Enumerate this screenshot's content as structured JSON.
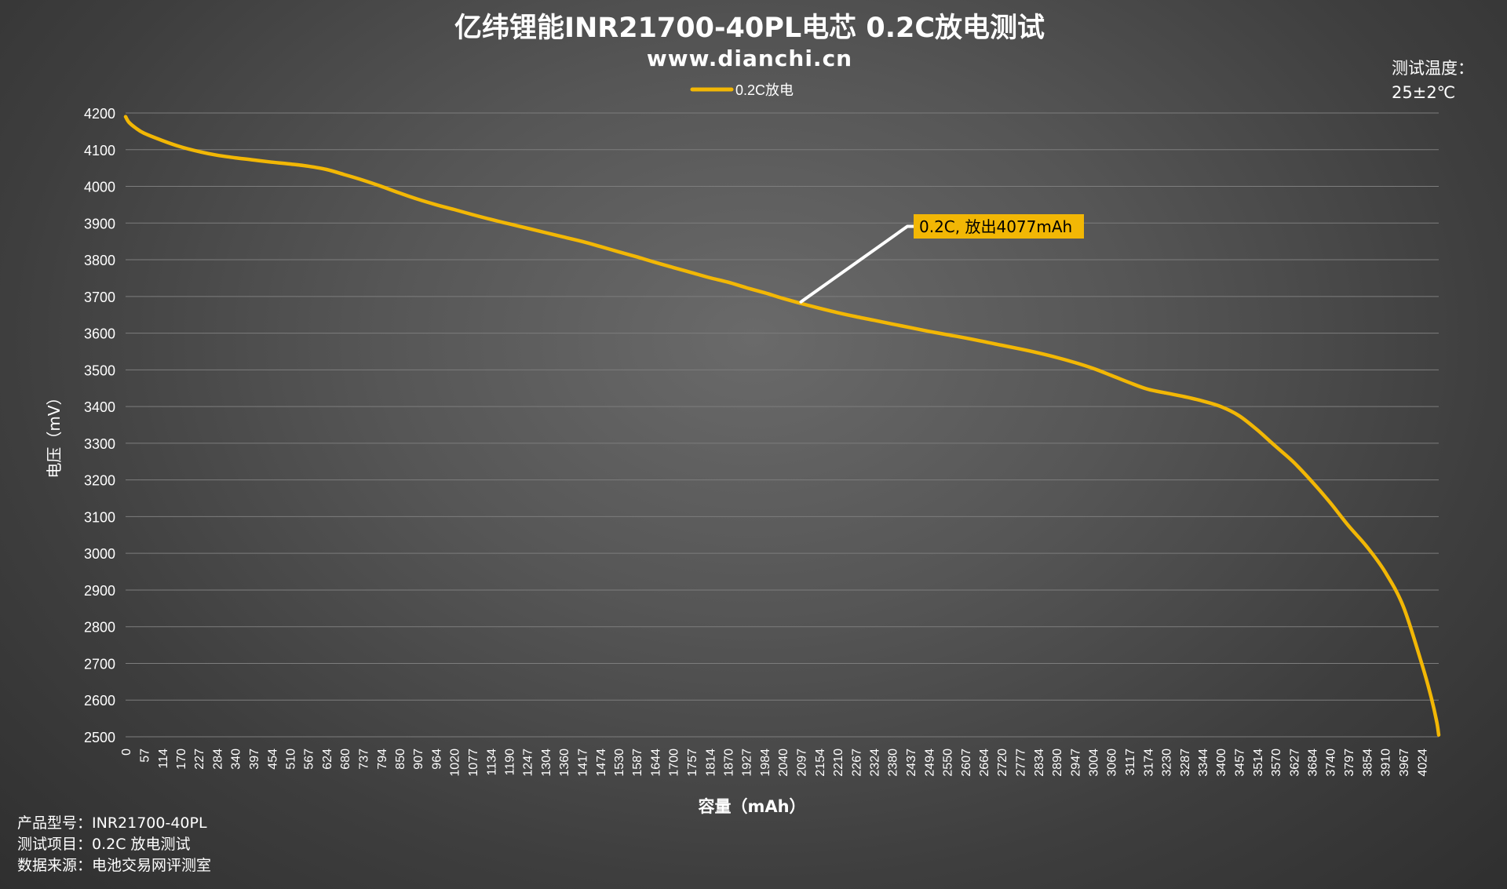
{
  "chart_data": {
    "type": "line",
    "title": "亿纬锂能INR21700-40PL电芯 0.2C放电测试",
    "subtitle": "www.dianchi.cn",
    "xlabel": "容量（mAh）",
    "ylabel": "电压（mV）",
    "ylim": [
      2500,
      4200
    ],
    "yticks": [
      4200,
      4100,
      4000,
      3900,
      3800,
      3700,
      3600,
      3500,
      3400,
      3300,
      3200,
      3100,
      3000,
      2900,
      2800,
      2700,
      2600,
      2500
    ],
    "xlim": [
      0,
      4077
    ],
    "xticks": [
      0,
      57,
      114,
      170,
      227,
      284,
      340,
      397,
      454,
      510,
      567,
      624,
      680,
      737,
      794,
      850,
      907,
      964,
      1020,
      1077,
      1134,
      1190,
      1247,
      1304,
      1360,
      1417,
      1474,
      1530,
      1587,
      1644,
      1700,
      1757,
      1814,
      1870,
      1927,
      1984,
      2040,
      2097,
      2154,
      2210,
      2267,
      2324,
      2380,
      2437,
      2494,
      2550,
      2607,
      2664,
      2720,
      2777,
      2834,
      2890,
      2947,
      3004,
      3060,
      3117,
      3174,
      3230,
      3287,
      3344,
      3400,
      3457,
      3514,
      3570,
      3627,
      3684,
      3740,
      3797,
      3854,
      3910,
      3967,
      4024
    ],
    "grid": true,
    "legend": "top-center",
    "series": [
      {
        "name": "0.2C放电",
        "color": "#f2b705",
        "x": [
          0,
          10,
          30,
          57,
          114,
          170,
          227,
          284,
          340,
          397,
          454,
          510,
          567,
          624,
          680,
          737,
          794,
          850,
          907,
          964,
          1020,
          1077,
          1134,
          1190,
          1247,
          1304,
          1360,
          1417,
          1474,
          1530,
          1587,
          1644,
          1700,
          1757,
          1814,
          1870,
          1927,
          1984,
          2040,
          2097,
          2154,
          2210,
          2267,
          2324,
          2380,
          2437,
          2494,
          2550,
          2607,
          2664,
          2720,
          2777,
          2834,
          2890,
          2947,
          3004,
          3060,
          3117,
          3174,
          3230,
          3287,
          3344,
          3400,
          3457,
          3514,
          3570,
          3627,
          3684,
          3740,
          3797,
          3854,
          3910,
          3967,
          4024,
          4050,
          4070,
          4077
        ],
        "values": [
          4190,
          4175,
          4160,
          4145,
          4125,
          4108,
          4095,
          4085,
          4078,
          4072,
          4066,
          4061,
          4055,
          4046,
          4032,
          4017,
          4000,
          3982,
          3965,
          3950,
          3937,
          3923,
          3910,
          3898,
          3886,
          3874,
          3862,
          3850,
          3836,
          3822,
          3808,
          3793,
          3779,
          3765,
          3751,
          3739,
          3724,
          3710,
          3695,
          3681,
          3668,
          3656,
          3645,
          3635,
          3625,
          3615,
          3605,
          3596,
          3587,
          3577,
          3567,
          3557,
          3546,
          3534,
          3520,
          3504,
          3485,
          3465,
          3447,
          3437,
          3427,
          3415,
          3400,
          3375,
          3336,
          3292,
          3248,
          3195,
          3138,
          3075,
          3018,
          2950,
          2855,
          2700,
          2620,
          2545,
          2505
        ]
      }
    ],
    "annotation": {
      "text": "0.2C, 放出4077mAh",
      "point_x": 2097,
      "point_y": 3681,
      "background": "#f2b705"
    }
  },
  "test_temperature": {
    "label": "测试温度：",
    "value": "25±2℃"
  },
  "info": {
    "model": "产品型号：INR21700-40PL",
    "item": "测试项目：0.2C 放电测试",
    "source": "数据来源：电池交易网评测室"
  }
}
